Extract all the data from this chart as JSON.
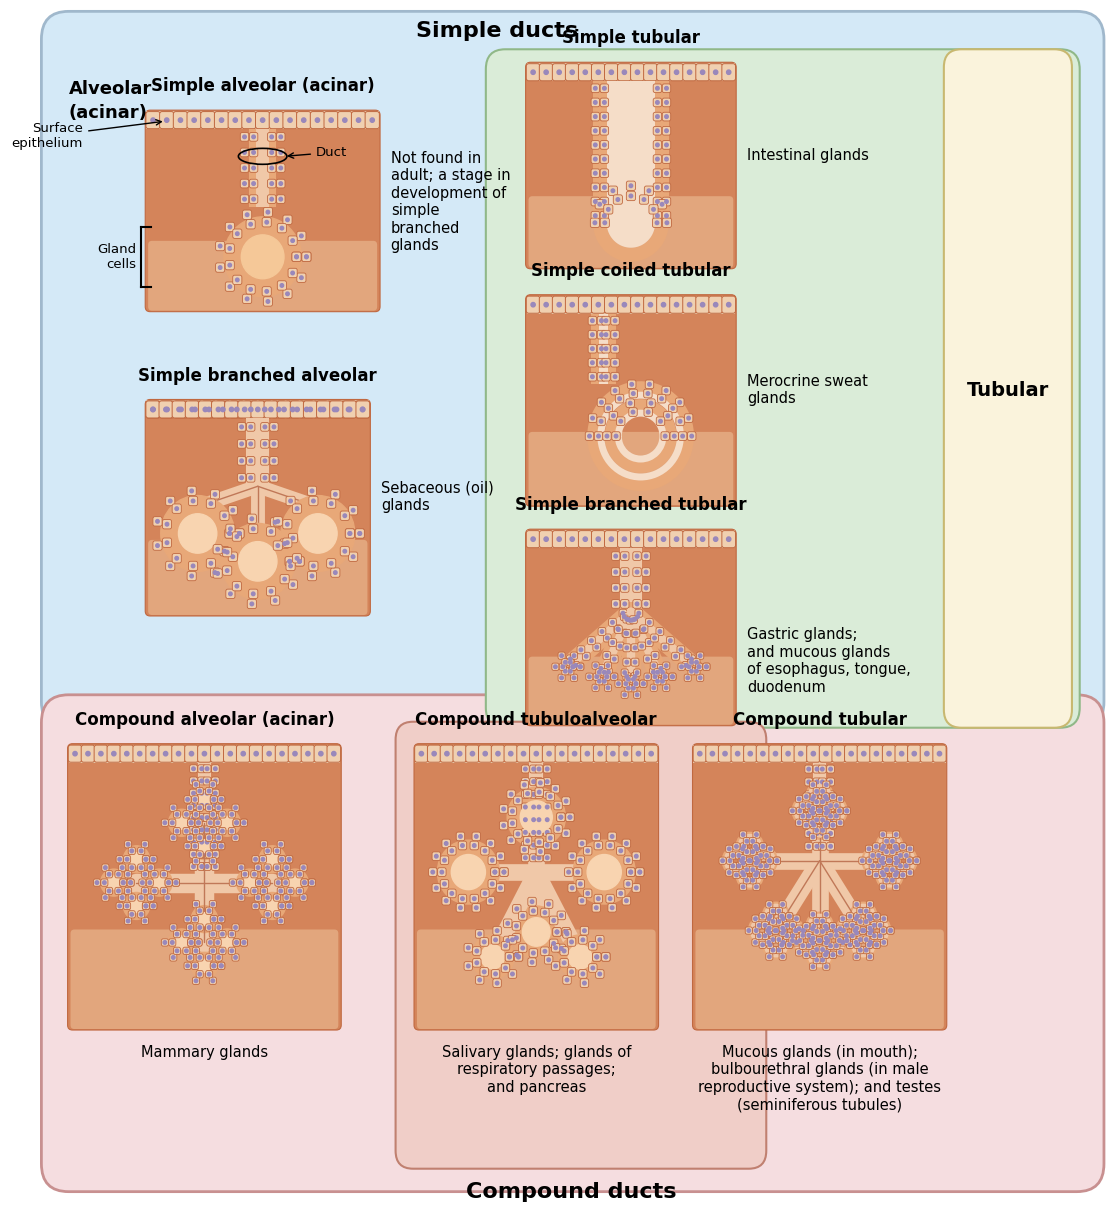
{
  "bg_simple_ducts": "#d4e9f7",
  "bg_tubular": "#daecd8",
  "bg_tubular_label": "#faf3dc",
  "bg_compound_ducts": "#f5dde0",
  "bg_compound_center": "#f0cec8",
  "label_simple_ducts": "Simple ducts",
  "label_compound_ducts": "Compound ducts",
  "label_tubular": "Tubular",
  "label_alveolar": "Alveolar\n(acinar)",
  "tissue_bg": "#d4845a",
  "tissue_bg_light": "#e8b090",
  "tissue_inner": "#f2c8a0",
  "cell_fill": "#e8a878",
  "cell_edge": "#c06840",
  "cell_dot": "#9988bb",
  "epi_fill": "#f0d0b0",
  "sections": [
    {
      "title": "Simple alveolar (acinar)",
      "label": "Not found in\nadult; a stage in\ndevelopment of\nsimple\nbranched\nglands"
    },
    {
      "title": "Simple branched alveolar",
      "label": "Sebaceous (oil)\nglands"
    },
    {
      "title": "Simple tubular",
      "label": "Intestinal glands"
    },
    {
      "title": "Simple coiled tubular",
      "label": "Merocrine sweat\nglands"
    },
    {
      "title": "Simple branched tubular",
      "label": "Gastric glands;\nand mucous glands\nof esophagus, tongue,\nduodenum"
    },
    {
      "title": "Compound alveolar (acinar)",
      "label": "Mammary glands"
    },
    {
      "title": "Compound tubuloalveolar",
      "label": "Salivary glands; glands of\nrespiratory passages;\nand pancreas"
    },
    {
      "title": "Compound tubular",
      "label": "Mucous glands (in mouth);\nbulbourethral glands (in male\nreproductive system); and testes\n(seminiferous tubules)"
    }
  ]
}
